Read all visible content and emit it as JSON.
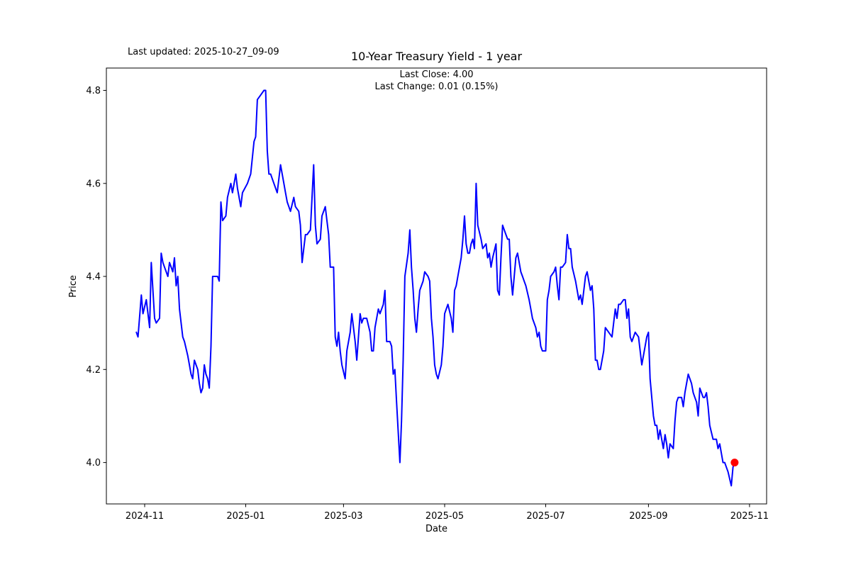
{
  "figure": {
    "last_updated": "Last updated: 2025-10-27_09-09",
    "title": "10-Year Treasury Yield - 1 year",
    "annotations": {
      "last_close": "Last Close: 4.00",
      "last_change": "Last Change: 0.01 (0.15%)"
    }
  },
  "chart_data": {
    "type": "line",
    "title": "10-Year Treasury Yield - 1 year",
    "xlabel": "Date",
    "ylabel": "Price",
    "grid": false,
    "legend": "none",
    "line_color": "#0000ff",
    "marker_color": "#ff0000",
    "background_color": "#ffffff",
    "last_close": 4.0,
    "last_change": 0.01,
    "last_change_pct": 0.15,
    "x_unit": "days since 2024-11-01",
    "x_ticks": [
      {
        "day": 0,
        "label": "2024-11"
      },
      {
        "day": 61,
        "label": "2025-01"
      },
      {
        "day": 120,
        "label": "2025-03"
      },
      {
        "day": 181,
        "label": "2025-05"
      },
      {
        "day": 242,
        "label": "2025-07"
      },
      {
        "day": 304,
        "label": "2025-09"
      },
      {
        "day": 365,
        "label": "2025-11"
      }
    ],
    "y_ticks": [
      {
        "value": 4.0,
        "label": "4.0"
      },
      {
        "value": 4.2,
        "label": "4.2"
      },
      {
        "value": 4.4,
        "label": "4.4"
      },
      {
        "value": 4.6,
        "label": "4.6"
      },
      {
        "value": 4.8,
        "label": "4.8"
      }
    ],
    "xlim_days": [
      -23.1,
      375.3
    ],
    "ylim": [
      3.911,
      4.848
    ],
    "last_point": {
      "day": 356,
      "value": 4.0
    },
    "series": [
      {
        "name": "10-Year Treasury Yield",
        "points": [
          [
            -5,
            4.28
          ],
          [
            -4,
            4.27
          ],
          [
            -2,
            4.36
          ],
          [
            -1,
            4.32
          ],
          [
            1,
            4.35
          ],
          [
            3,
            4.29
          ],
          [
            4,
            4.43
          ],
          [
            6,
            4.31
          ],
          [
            7,
            4.3
          ],
          [
            9,
            4.31
          ],
          [
            10,
            4.45
          ],
          [
            11,
            4.43
          ],
          [
            12,
            4.42
          ],
          [
            14,
            4.4
          ],
          [
            15,
            4.43
          ],
          [
            17,
            4.41
          ],
          [
            18,
            4.44
          ],
          [
            19,
            4.38
          ],
          [
            20,
            4.4
          ],
          [
            21,
            4.33
          ],
          [
            22,
            4.3
          ],
          [
            23,
            4.27
          ],
          [
            24,
            4.26
          ],
          [
            26,
            4.23
          ],
          [
            27,
            4.21
          ],
          [
            28,
            4.19
          ],
          [
            29,
            4.18
          ],
          [
            30,
            4.22
          ],
          [
            32,
            4.2
          ],
          [
            33,
            4.17
          ],
          [
            34,
            4.15
          ],
          [
            35,
            4.16
          ],
          [
            36,
            4.21
          ],
          [
            37,
            4.19
          ],
          [
            38,
            4.18
          ],
          [
            39,
            4.16
          ],
          [
            40,
            4.25
          ],
          [
            41,
            4.4
          ],
          [
            42,
            4.4
          ],
          [
            44,
            4.4
          ],
          [
            45,
            4.39
          ],
          [
            46,
            4.56
          ],
          [
            47,
            4.52
          ],
          [
            49,
            4.53
          ],
          [
            50,
            4.57
          ],
          [
            52,
            4.6
          ],
          [
            53,
            4.58
          ],
          [
            55,
            4.62
          ],
          [
            56,
            4.59
          ],
          [
            58,
            4.55
          ],
          [
            59,
            4.58
          ],
          [
            62,
            4.6
          ],
          [
            64,
            4.62
          ],
          [
            66,
            4.69
          ],
          [
            67,
            4.7
          ],
          [
            68,
            4.78
          ],
          [
            70,
            4.79
          ],
          [
            72,
            4.8
          ],
          [
            73,
            4.8
          ],
          [
            74,
            4.67
          ],
          [
            75,
            4.62
          ],
          [
            76,
            4.62
          ],
          [
            77,
            4.61
          ],
          [
            80,
            4.58
          ],
          [
            82,
            4.64
          ],
          [
            84,
            4.6
          ],
          [
            85,
            4.58
          ],
          [
            86,
            4.56
          ],
          [
            87,
            4.55
          ],
          [
            88,
            4.54
          ],
          [
            90,
            4.57
          ],
          [
            91,
            4.55
          ],
          [
            93,
            4.54
          ],
          [
            94,
            4.51
          ],
          [
            95,
            4.43
          ],
          [
            97,
            4.49
          ],
          [
            98,
            4.49
          ],
          [
            100,
            4.5
          ],
          [
            102,
            4.64
          ],
          [
            103,
            4.51
          ],
          [
            104,
            4.47
          ],
          [
            106,
            4.48
          ],
          [
            107,
            4.53
          ],
          [
            109,
            4.55
          ],
          [
            110,
            4.52
          ],
          [
            111,
            4.49
          ],
          [
            112,
            4.42
          ],
          [
            114,
            4.42
          ],
          [
            115,
            4.27
          ],
          [
            116,
            4.25
          ],
          [
            117,
            4.28
          ],
          [
            118,
            4.24
          ],
          [
            119,
            4.21
          ],
          [
            121,
            4.18
          ],
          [
            122,
            4.24
          ],
          [
            124,
            4.28
          ],
          [
            125,
            4.32
          ],
          [
            127,
            4.26
          ],
          [
            128,
            4.22
          ],
          [
            130,
            4.32
          ],
          [
            131,
            4.3
          ],
          [
            132,
            4.31
          ],
          [
            134,
            4.31
          ],
          [
            136,
            4.28
          ],
          [
            137,
            4.24
          ],
          [
            138,
            4.24
          ],
          [
            139,
            4.29
          ],
          [
            141,
            4.33
          ],
          [
            142,
            4.32
          ],
          [
            144,
            4.34
          ],
          [
            145,
            4.37
          ],
          [
            146,
            4.26
          ],
          [
            148,
            4.26
          ],
          [
            149,
            4.25
          ],
          [
            150,
            4.19
          ],
          [
            151,
            4.2
          ],
          [
            152,
            4.13
          ],
          [
            154,
            4.0
          ],
          [
            155,
            4.09
          ],
          [
            156,
            4.22
          ],
          [
            157,
            4.4
          ],
          [
            159,
            4.45
          ],
          [
            160,
            4.5
          ],
          [
            161,
            4.42
          ],
          [
            162,
            4.37
          ],
          [
            163,
            4.31
          ],
          [
            164,
            4.28
          ],
          [
            165,
            4.33
          ],
          [
            166,
            4.37
          ],
          [
            168,
            4.39
          ],
          [
            169,
            4.41
          ],
          [
            171,
            4.4
          ],
          [
            172,
            4.39
          ],
          [
            173,
            4.31
          ],
          [
            174,
            4.27
          ],
          [
            175,
            4.21
          ],
          [
            176,
            4.19
          ],
          [
            177,
            4.18
          ],
          [
            179,
            4.21
          ],
          [
            180,
            4.25
          ],
          [
            181,
            4.32
          ],
          [
            182,
            4.33
          ],
          [
            183,
            4.34
          ],
          [
            185,
            4.31
          ],
          [
            186,
            4.28
          ],
          [
            187,
            4.37
          ],
          [
            188,
            4.38
          ],
          [
            189,
            4.4
          ],
          [
            191,
            4.44
          ],
          [
            192,
            4.48
          ],
          [
            193,
            4.53
          ],
          [
            194,
            4.47
          ],
          [
            195,
            4.45
          ],
          [
            196,
            4.45
          ],
          [
            197,
            4.47
          ],
          [
            198,
            4.48
          ],
          [
            199,
            4.46
          ],
          [
            200,
            4.6
          ],
          [
            201,
            4.51
          ],
          [
            203,
            4.48
          ],
          [
            204,
            4.46
          ],
          [
            206,
            4.47
          ],
          [
            207,
            4.44
          ],
          [
            208,
            4.45
          ],
          [
            209,
            4.42
          ],
          [
            210,
            4.44
          ],
          [
            212,
            4.47
          ],
          [
            213,
            4.37
          ],
          [
            214,
            4.36
          ],
          [
            215,
            4.44
          ],
          [
            216,
            4.51
          ],
          [
            218,
            4.49
          ],
          [
            219,
            4.48
          ],
          [
            220,
            4.48
          ],
          [
            221,
            4.4
          ],
          [
            222,
            4.36
          ],
          [
            224,
            4.44
          ],
          [
            225,
            4.45
          ],
          [
            227,
            4.41
          ],
          [
            228,
            4.4
          ],
          [
            229,
            4.39
          ],
          [
            230,
            4.38
          ],
          [
            232,
            4.35
          ],
          [
            233,
            4.33
          ],
          [
            234,
            4.31
          ],
          [
            236,
            4.29
          ],
          [
            237,
            4.27
          ],
          [
            238,
            4.28
          ],
          [
            239,
            4.25
          ],
          [
            240,
            4.24
          ],
          [
            242,
            4.24
          ],
          [
            243,
            4.35
          ],
          [
            244,
            4.37
          ],
          [
            245,
            4.4
          ],
          [
            247,
            4.41
          ],
          [
            248,
            4.42
          ],
          [
            249,
            4.38
          ],
          [
            250,
            4.35
          ],
          [
            251,
            4.42
          ],
          [
            252,
            4.42
          ],
          [
            254,
            4.43
          ],
          [
            255,
            4.49
          ],
          [
            256,
            4.46
          ],
          [
            257,
            4.46
          ],
          [
            258,
            4.42
          ],
          [
            260,
            4.39
          ],
          [
            261,
            4.37
          ],
          [
            262,
            4.35
          ],
          [
            263,
            4.36
          ],
          [
            264,
            4.34
          ],
          [
            266,
            4.4
          ],
          [
            267,
            4.41
          ],
          [
            269,
            4.37
          ],
          [
            270,
            4.38
          ],
          [
            271,
            4.33
          ],
          [
            272,
            4.22
          ],
          [
            273,
            4.22
          ],
          [
            274,
            4.2
          ],
          [
            275,
            4.2
          ],
          [
            277,
            4.24
          ],
          [
            278,
            4.29
          ],
          [
            280,
            4.28
          ],
          [
            282,
            4.27
          ],
          [
            283,
            4.3
          ],
          [
            284,
            4.33
          ],
          [
            285,
            4.31
          ],
          [
            286,
            4.34
          ],
          [
            287,
            4.34
          ],
          [
            289,
            4.35
          ],
          [
            290,
            4.35
          ],
          [
            291,
            4.31
          ],
          [
            292,
            4.33
          ],
          [
            293,
            4.27
          ],
          [
            294,
            4.26
          ],
          [
            296,
            4.28
          ],
          [
            298,
            4.27
          ],
          [
            299,
            4.24
          ],
          [
            300,
            4.21
          ],
          [
            302,
            4.25
          ],
          [
            303,
            4.27
          ],
          [
            304,
            4.28
          ],
          [
            305,
            4.18
          ],
          [
            307,
            4.1
          ],
          [
            308,
            4.08
          ],
          [
            309,
            4.08
          ],
          [
            310,
            4.05
          ],
          [
            311,
            4.07
          ],
          [
            313,
            4.03
          ],
          [
            314,
            4.06
          ],
          [
            315,
            4.04
          ],
          [
            316,
            4.01
          ],
          [
            317,
            4.04
          ],
          [
            319,
            4.03
          ],
          [
            320,
            4.09
          ],
          [
            321,
            4.13
          ],
          [
            322,
            4.14
          ],
          [
            324,
            4.14
          ],
          [
            325,
            4.12
          ],
          [
            326,
            4.15
          ],
          [
            328,
            4.19
          ],
          [
            330,
            4.17
          ],
          [
            331,
            4.15
          ],
          [
            332,
            4.14
          ],
          [
            333,
            4.13
          ],
          [
            334,
            4.1
          ],
          [
            335,
            4.16
          ],
          [
            337,
            4.14
          ],
          [
            338,
            4.14
          ],
          [
            339,
            4.15
          ],
          [
            340,
            4.12
          ],
          [
            341,
            4.08
          ],
          [
            343,
            4.05
          ],
          [
            344,
            4.05
          ],
          [
            345,
            4.05
          ],
          [
            346,
            4.03
          ],
          [
            347,
            4.04
          ],
          [
            348,
            4.02
          ],
          [
            349,
            4.0
          ],
          [
            350,
            4.0
          ],
          [
            351,
            3.99
          ],
          [
            352,
            3.98
          ],
          [
            354,
            3.95
          ],
          [
            355,
            3.99
          ],
          [
            356,
            4.0
          ]
        ]
      }
    ]
  }
}
